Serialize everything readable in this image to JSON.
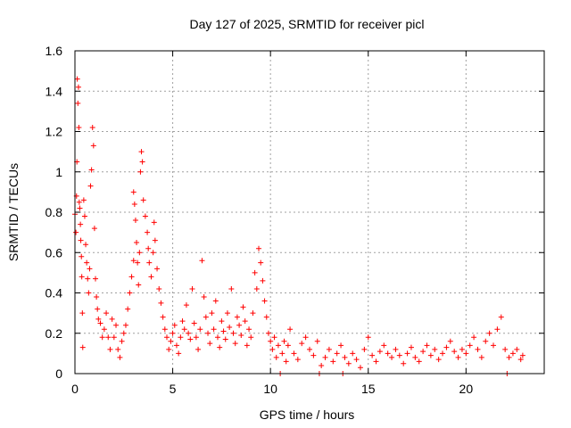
{
  "chart_data": {
    "type": "scatter",
    "title": "Day 127 of 2025, SRMTID for receiver picl",
    "xlabel": "GPS time / hours",
    "ylabel": "SRMTID / TECUs",
    "xlim": [
      0,
      24
    ],
    "ylim": [
      0,
      1.6
    ],
    "x_ticks": [
      0,
      5,
      10,
      15,
      20
    ],
    "x_tick_labels": [
      "0",
      "5",
      "10",
      "15",
      "20"
    ],
    "y_ticks": [
      0,
      0.2,
      0.4,
      0.6,
      0.8,
      1,
      1.2,
      1.4,
      1.6
    ],
    "y_tick_labels": [
      "0",
      "0.2",
      "0.4",
      "0.6",
      "0.8",
      "1",
      "1.2",
      "1.4",
      "1.6"
    ],
    "grid": true,
    "marker": "plus",
    "color": "#ff0000",
    "series": [
      {
        "name": "SRMTID",
        "points": [
          [
            0.0,
            0.79
          ],
          [
            0.05,
            0.7
          ],
          [
            0.08,
            0.88
          ],
          [
            0.1,
            1.05
          ],
          [
            0.12,
            1.46
          ],
          [
            0.15,
            1.34
          ],
          [
            0.18,
            1.42
          ],
          [
            0.2,
            1.22
          ],
          [
            0.22,
            0.85
          ],
          [
            0.25,
            0.82
          ],
          [
            0.28,
            0.74
          ],
          [
            0.3,
            0.66
          ],
          [
            0.33,
            0.58
          ],
          [
            0.35,
            0.48
          ],
          [
            0.38,
            0.3
          ],
          [
            0.4,
            0.13
          ],
          [
            0.45,
            0.86
          ],
          [
            0.5,
            0.78
          ],
          [
            0.55,
            0.64
          ],
          [
            0.6,
            0.55
          ],
          [
            0.65,
            0.47
          ],
          [
            0.7,
            0.4
          ],
          [
            0.75,
            0.52
          ],
          [
            0.8,
            0.93
          ],
          [
            0.85,
            1.01
          ],
          [
            0.9,
            1.22
          ],
          [
            0.95,
            1.13
          ],
          [
            1.0,
            0.72
          ],
          [
            1.05,
            0.47
          ],
          [
            1.1,
            0.38
          ],
          [
            1.15,
            0.32
          ],
          [
            1.2,
            0.27
          ],
          [
            1.3,
            0.25
          ],
          [
            1.4,
            0.18
          ],
          [
            1.5,
            0.22
          ],
          [
            1.6,
            0.3
          ],
          [
            1.7,
            0.18
          ],
          [
            1.8,
            0.12
          ],
          [
            1.9,
            0.27
          ],
          [
            2.0,
            0.18
          ],
          [
            2.1,
            0.24
          ],
          [
            2.2,
            0.12
          ],
          [
            2.3,
            0.08
          ],
          [
            2.4,
            0.16
          ],
          [
            2.5,
            0.2
          ],
          [
            2.6,
            0.24
          ],
          [
            2.7,
            0.32
          ],
          [
            2.8,
            0.4
          ],
          [
            2.9,
            0.48
          ],
          [
            3.0,
            0.56
          ],
          [
            3.0,
            0.9
          ],
          [
            3.05,
            0.84
          ],
          [
            3.1,
            0.76
          ],
          [
            3.15,
            0.65
          ],
          [
            3.2,
            0.55
          ],
          [
            3.25,
            0.44
          ],
          [
            3.3,
            0.6
          ],
          [
            3.35,
            1.0
          ],
          [
            3.4,
            1.1
          ],
          [
            3.45,
            1.05
          ],
          [
            3.5,
            0.86
          ],
          [
            3.6,
            0.78
          ],
          [
            3.7,
            0.7
          ],
          [
            3.75,
            0.62
          ],
          [
            3.8,
            0.55
          ],
          [
            3.9,
            0.48
          ],
          [
            4.0,
            0.6
          ],
          [
            4.05,
            0.75
          ],
          [
            4.1,
            0.66
          ],
          [
            4.2,
            0.52
          ],
          [
            4.3,
            0.42
          ],
          [
            4.4,
            0.35
          ],
          [
            4.5,
            0.28
          ],
          [
            4.6,
            0.22
          ],
          [
            4.7,
            0.18
          ],
          [
            4.8,
            0.12
          ],
          [
            4.9,
            0.16
          ],
          [
            5.0,
            0.2
          ],
          [
            5.1,
            0.24
          ],
          [
            5.2,
            0.14
          ],
          [
            5.3,
            0.1
          ],
          [
            5.4,
            0.18
          ],
          [
            5.5,
            0.26
          ],
          [
            5.6,
            0.22
          ],
          [
            5.7,
            0.34
          ],
          [
            5.8,
            0.2
          ],
          [
            5.9,
            0.17
          ],
          [
            6.0,
            0.42
          ],
          [
            6.1,
            0.25
          ],
          [
            6.2,
            0.18
          ],
          [
            6.3,
            0.12
          ],
          [
            6.4,
            0.22
          ],
          [
            6.5,
            0.56
          ],
          [
            6.6,
            0.38
          ],
          [
            6.7,
            0.28
          ],
          [
            6.8,
            0.2
          ],
          [
            6.9,
            0.15
          ],
          [
            7.0,
            0.3
          ],
          [
            7.1,
            0.22
          ],
          [
            7.2,
            0.36
          ],
          [
            7.3,
            0.18
          ],
          [
            7.4,
            0.13
          ],
          [
            7.5,
            0.26
          ],
          [
            7.6,
            0.21
          ],
          [
            7.7,
            0.17
          ],
          [
            7.8,
            0.3
          ],
          [
            7.9,
            0.23
          ],
          [
            8.0,
            0.42
          ],
          [
            8.1,
            0.2
          ],
          [
            8.2,
            0.15
          ],
          [
            8.3,
            0.28
          ],
          [
            8.4,
            0.24
          ],
          [
            8.5,
            0.19
          ],
          [
            8.6,
            0.33
          ],
          [
            8.7,
            0.26
          ],
          [
            8.8,
            0.14
          ],
          [
            8.9,
            0.22
          ],
          [
            9.0,
            0.18
          ],
          [
            9.1,
            0.3
          ],
          [
            9.2,
            0.5
          ],
          [
            9.3,
            0.42
          ],
          [
            9.4,
            0.62
          ],
          [
            9.5,
            0.55
          ],
          [
            9.6,
            0.46
          ],
          [
            9.7,
            0.36
          ],
          [
            9.8,
            0.28
          ],
          [
            9.9,
            0.2
          ],
          [
            10.0,
            0.16
          ],
          [
            10.1,
            0.12
          ],
          [
            10.2,
            0.18
          ],
          [
            10.3,
            0.08
          ],
          [
            10.4,
            0.14
          ],
          [
            10.5,
            0.0
          ],
          [
            10.6,
            0.1
          ],
          [
            10.7,
            0.16
          ],
          [
            10.8,
            0.06
          ],
          [
            10.9,
            0.14
          ],
          [
            11.0,
            0.22
          ],
          [
            11.2,
            0.1
          ],
          [
            11.4,
            0.07
          ],
          [
            11.6,
            0.15
          ],
          [
            11.8,
            0.18
          ],
          [
            12.0,
            0.12
          ],
          [
            12.2,
            0.09
          ],
          [
            12.4,
            0.16
          ],
          [
            12.5,
            0.0
          ],
          [
            12.6,
            0.04
          ],
          [
            12.8,
            0.08
          ],
          [
            13.0,
            0.12
          ],
          [
            13.2,
            0.06
          ],
          [
            13.4,
            0.1
          ],
          [
            13.6,
            0.14
          ],
          [
            13.7,
            0.0
          ],
          [
            13.8,
            0.08
          ],
          [
            14.0,
            0.05
          ],
          [
            14.2,
            0.1
          ],
          [
            14.4,
            0.07
          ],
          [
            14.6,
            0.03
          ],
          [
            14.8,
            0.12
          ],
          [
            15.0,
            0.18
          ],
          [
            15.2,
            0.09
          ],
          [
            15.4,
            0.06
          ],
          [
            15.6,
            0.11
          ],
          [
            15.8,
            0.14
          ],
          [
            16.0,
            0.1
          ],
          [
            16.2,
            0.08
          ],
          [
            16.4,
            0.12
          ],
          [
            16.6,
            0.09
          ],
          [
            16.8,
            0.05
          ],
          [
            17.0,
            0.1
          ],
          [
            17.2,
            0.13
          ],
          [
            17.4,
            0.08
          ],
          [
            17.6,
            0.06
          ],
          [
            17.8,
            0.11
          ],
          [
            18.0,
            0.14
          ],
          [
            18.2,
            0.09
          ],
          [
            18.4,
            0.12
          ],
          [
            18.6,
            0.07
          ],
          [
            18.8,
            0.1
          ],
          [
            19.0,
            0.13
          ],
          [
            19.2,
            0.16
          ],
          [
            19.4,
            0.11
          ],
          [
            19.6,
            0.08
          ],
          [
            19.8,
            0.12
          ],
          [
            20.0,
            0.1
          ],
          [
            20.2,
            0.14
          ],
          [
            20.4,
            0.18
          ],
          [
            20.6,
            0.12
          ],
          [
            20.8,
            0.08
          ],
          [
            21.0,
            0.16
          ],
          [
            21.2,
            0.2
          ],
          [
            21.4,
            0.14
          ],
          [
            21.6,
            0.22
          ],
          [
            21.8,
            0.28
          ],
          [
            22.0,
            0.12
          ],
          [
            22.1,
            0.0
          ],
          [
            22.2,
            0.08
          ],
          [
            22.4,
            0.1
          ],
          [
            22.6,
            0.12
          ],
          [
            22.8,
            0.07
          ],
          [
            22.9,
            0.09
          ]
        ]
      }
    ]
  }
}
